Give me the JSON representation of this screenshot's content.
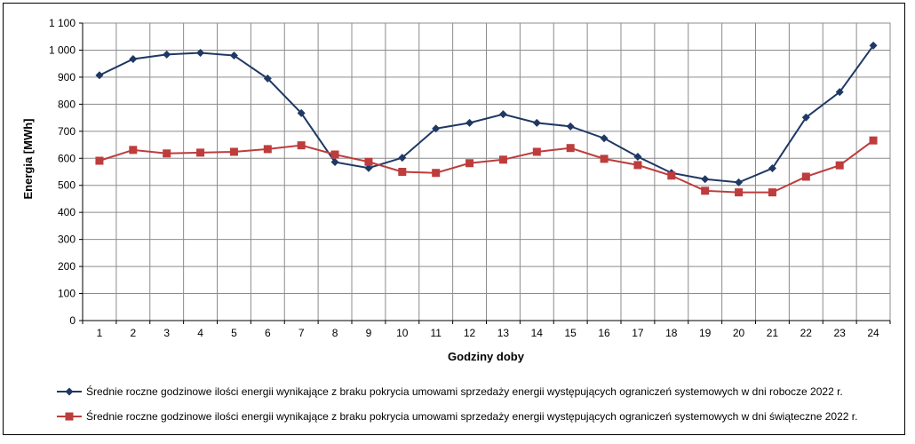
{
  "chart_data": {
    "type": "line",
    "xlabel": "Godziny doby",
    "ylabel": "Energia [MWh]",
    "ylim": [
      0,
      1100
    ],
    "y_ticks": [
      0,
      100,
      200,
      300,
      400,
      500,
      600,
      700,
      800,
      900,
      1000,
      1100
    ],
    "y_tick_labels": [
      "0",
      "100",
      "200",
      "300",
      "400",
      "500",
      "600",
      "700",
      "800",
      "900",
      "1 000",
      "1 100"
    ],
    "categories": [
      "1",
      "2",
      "3",
      "4",
      "5",
      "6",
      "7",
      "8",
      "9",
      "10",
      "11",
      "12",
      "13",
      "14",
      "15",
      "16",
      "17",
      "18",
      "19",
      "20",
      "21",
      "22",
      "23",
      "24"
    ],
    "grid": true,
    "legend_position": "bottom",
    "series": [
      {
        "name": "Średnie roczne godzinowe ilości energii wynikające z braku pokrycia umowami sprzedaży energii występujących ograniczeń systemowych w dni robocze 2022 r.",
        "color": "#1f3864",
        "marker": "diamond",
        "values": [
          907,
          967,
          984,
          990,
          980,
          895,
          767,
          586,
          564,
          602,
          710,
          731,
          763,
          731,
          718,
          674,
          606,
          546,
          523,
          511,
          563,
          751,
          845,
          1017
        ]
      },
      {
        "name": "Średnie roczne godzinowe ilości energii wynikające z braku pokrycia umowami sprzedaży energii występujących ograniczeń systemowych w dni świąteczne 2022 r.",
        "color": "#be3c3c",
        "marker": "square",
        "values": [
          591,
          631,
          618,
          621,
          624,
          634,
          648,
          614,
          587,
          550,
          546,
          582,
          595,
          624,
          638,
          598,
          575,
          536,
          480,
          474,
          474,
          532,
          574,
          666
        ]
      }
    ]
  }
}
